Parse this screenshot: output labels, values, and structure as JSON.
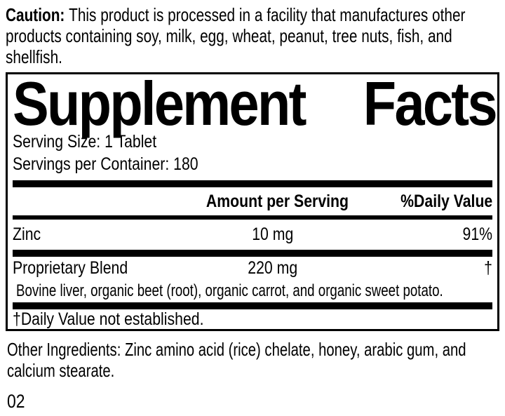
{
  "caution": {
    "label": "Caution:",
    "lines": [
      "This product is processed in a facility that manufactures other",
      "products containing soy, milk, egg, wheat, peanut, tree nuts, fish, and",
      "shellfish."
    ]
  },
  "panel": {
    "title_word1": "Supplement",
    "title_word2": "Facts",
    "serving_size": "Serving Size: 1 Tablet",
    "servings_per_container": "Servings per Container: 180",
    "columns": {
      "amount": "Amount per Serving",
      "daily_value": "%Daily Value"
    },
    "rows": [
      {
        "name": "Zinc",
        "amount": "10 mg",
        "dv": "91%"
      },
      {
        "name": "Proprietary Blend",
        "amount": "220 mg",
        "dv": "†"
      }
    ],
    "blend_description": "Bovine liver, organic beet (root), organic carrot, and organic sweet potato.",
    "footnote": "†Daily Value not established."
  },
  "other_ingredients": {
    "lines": [
      "Other Ingredients: Zinc amino acid (rice) chelate, honey, arabic gum, and",
      "calcium stearate."
    ]
  },
  "page_code": "02",
  "colors": {
    "text": "#000000",
    "background": "#ffffff",
    "rule": "#000000"
  }
}
